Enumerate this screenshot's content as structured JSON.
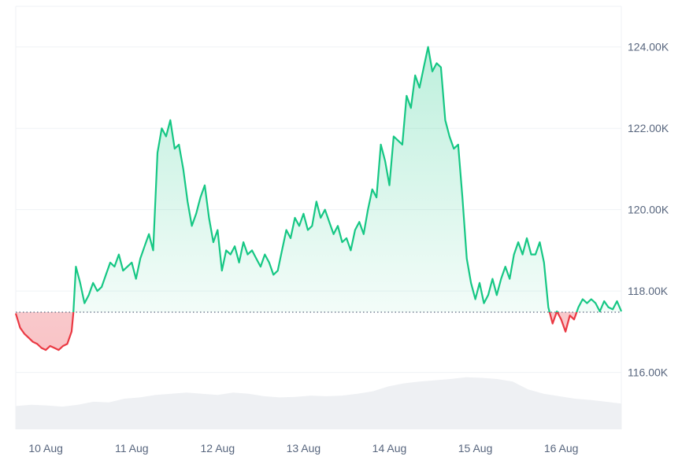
{
  "colors": {
    "up": "#16c784",
    "down": "#ea3943",
    "up_fill": "#16c784",
    "down_fill": "#ea3943",
    "volume": "#eef0f3",
    "grid": "#eff2f5",
    "axis_text": "#58667e",
    "baseline": "#58667e"
  },
  "chart_data": {
    "type": "line",
    "title": "",
    "xlabel": "",
    "ylabel": "",
    "ylim": [
      114.6,
      125.0
    ],
    "y_ticks": [
      {
        "value": 124,
        "label": "124.00K"
      },
      {
        "value": 122,
        "label": "122.00K"
      },
      {
        "value": 120,
        "label": "120.00K"
      },
      {
        "value": 118,
        "label": "118.00K"
      },
      {
        "value": 116,
        "label": "116.00K"
      }
    ],
    "x_range": [
      0,
      7.05
    ],
    "x_ticks": [
      {
        "value": 0.35,
        "label": "10 Aug"
      },
      {
        "value": 1.35,
        "label": "11 Aug"
      },
      {
        "value": 2.35,
        "label": "12 Aug"
      },
      {
        "value": 3.35,
        "label": "13 Aug"
      },
      {
        "value": 4.35,
        "label": "14 Aug"
      },
      {
        "value": 5.35,
        "label": "15 Aug"
      },
      {
        "value": 6.35,
        "label": "16 Aug"
      }
    ],
    "baseline": 117.48,
    "series": [
      {
        "x": [
          0.0,
          0.05,
          0.1,
          0.15,
          0.2,
          0.25,
          0.3,
          0.35,
          0.4,
          0.45,
          0.5,
          0.55,
          0.6,
          0.65,
          0.67,
          0.7,
          0.75,
          0.8,
          0.85,
          0.9,
          0.95,
          1.0,
          1.05,
          1.1,
          1.15,
          1.2,
          1.25,
          1.3,
          1.35,
          1.4,
          1.45,
          1.5,
          1.55,
          1.6,
          1.65,
          1.7,
          1.75,
          1.8,
          1.85,
          1.9,
          1.95,
          2.0,
          2.05,
          2.1,
          2.15,
          2.2,
          2.25,
          2.3,
          2.35,
          2.4,
          2.45,
          2.5,
          2.55,
          2.6,
          2.65,
          2.7,
          2.75,
          2.8,
          2.85,
          2.9,
          2.95,
          3.0,
          3.05,
          3.1,
          3.15,
          3.2,
          3.25,
          3.3,
          3.35,
          3.4,
          3.45,
          3.5,
          3.55,
          3.6,
          3.65,
          3.7,
          3.75,
          3.8,
          3.85,
          3.9,
          3.95,
          4.0,
          4.05,
          4.1,
          4.15,
          4.2,
          4.25,
          4.3,
          4.35,
          4.4,
          4.45,
          4.5,
          4.55,
          4.6,
          4.65,
          4.7,
          4.75,
          4.8,
          4.85,
          4.9,
          4.95,
          5.0,
          5.05,
          5.1,
          5.15,
          5.2,
          5.25,
          5.3,
          5.35,
          5.4,
          5.45,
          5.5,
          5.55,
          5.6,
          5.65,
          5.7,
          5.75,
          5.8,
          5.85,
          5.9,
          5.95,
          6.0,
          6.05,
          6.1,
          6.15,
          6.2,
          6.25,
          6.3,
          6.35,
          6.4,
          6.45,
          6.5,
          6.55,
          6.6,
          6.65,
          6.7,
          6.75,
          6.8,
          6.85,
          6.9,
          6.95,
          7.0,
          7.05
        ],
        "y": [
          117.45,
          117.1,
          116.95,
          116.85,
          116.75,
          116.7,
          116.6,
          116.55,
          116.65,
          116.6,
          116.55,
          116.65,
          116.7,
          117.0,
          117.45,
          118.6,
          118.2,
          117.7,
          117.9,
          118.2,
          118.0,
          118.1,
          118.4,
          118.7,
          118.6,
          118.9,
          118.5,
          118.6,
          118.7,
          118.3,
          118.8,
          119.1,
          119.4,
          119.0,
          121.4,
          122.0,
          121.8,
          122.2,
          121.5,
          121.6,
          121.0,
          120.2,
          119.6,
          119.9,
          120.3,
          120.6,
          119.8,
          119.2,
          119.5,
          118.5,
          119.0,
          118.9,
          119.1,
          118.7,
          119.2,
          118.9,
          119.0,
          118.8,
          118.6,
          118.9,
          118.7,
          118.4,
          118.5,
          119.0,
          119.5,
          119.3,
          119.8,
          119.6,
          119.9,
          119.5,
          119.6,
          120.2,
          119.8,
          120.0,
          119.7,
          119.4,
          119.6,
          119.2,
          119.3,
          119.0,
          119.5,
          119.7,
          119.4,
          120.0,
          120.5,
          120.3,
          121.6,
          121.2,
          120.6,
          121.8,
          121.7,
          121.6,
          122.8,
          122.5,
          123.3,
          123.0,
          123.5,
          124.0,
          123.4,
          123.6,
          123.5,
          122.2,
          121.8,
          121.5,
          121.6,
          120.3,
          118.8,
          118.2,
          117.8,
          118.2,
          117.7,
          117.9,
          118.3,
          117.9,
          118.3,
          118.6,
          118.3,
          118.9,
          119.2,
          118.9,
          119.3,
          118.9,
          118.9,
          119.2,
          118.7,
          117.6,
          117.2,
          117.5,
          117.3,
          117.0,
          117.4,
          117.3,
          117.6,
          117.8,
          117.7,
          117.8,
          117.7,
          117.5,
          117.75,
          117.6,
          117.55,
          117.75,
          117.5
        ],
        "color": "#16c784"
      }
    ],
    "volume_profile": [
      0.38,
      0.4,
      0.39,
      0.37,
      0.4,
      0.45,
      0.44,
      0.5,
      0.52,
      0.56,
      0.58,
      0.6,
      0.58,
      0.56,
      0.6,
      0.58,
      0.54,
      0.52,
      0.53,
      0.55,
      0.54,
      0.55,
      0.58,
      0.62,
      0.7,
      0.75,
      0.78,
      0.8,
      0.82,
      0.85,
      0.84,
      0.82,
      0.78,
      0.65,
      0.58,
      0.54,
      0.5,
      0.48,
      0.45,
      0.42
    ],
    "grid": true,
    "legend": "none"
  }
}
